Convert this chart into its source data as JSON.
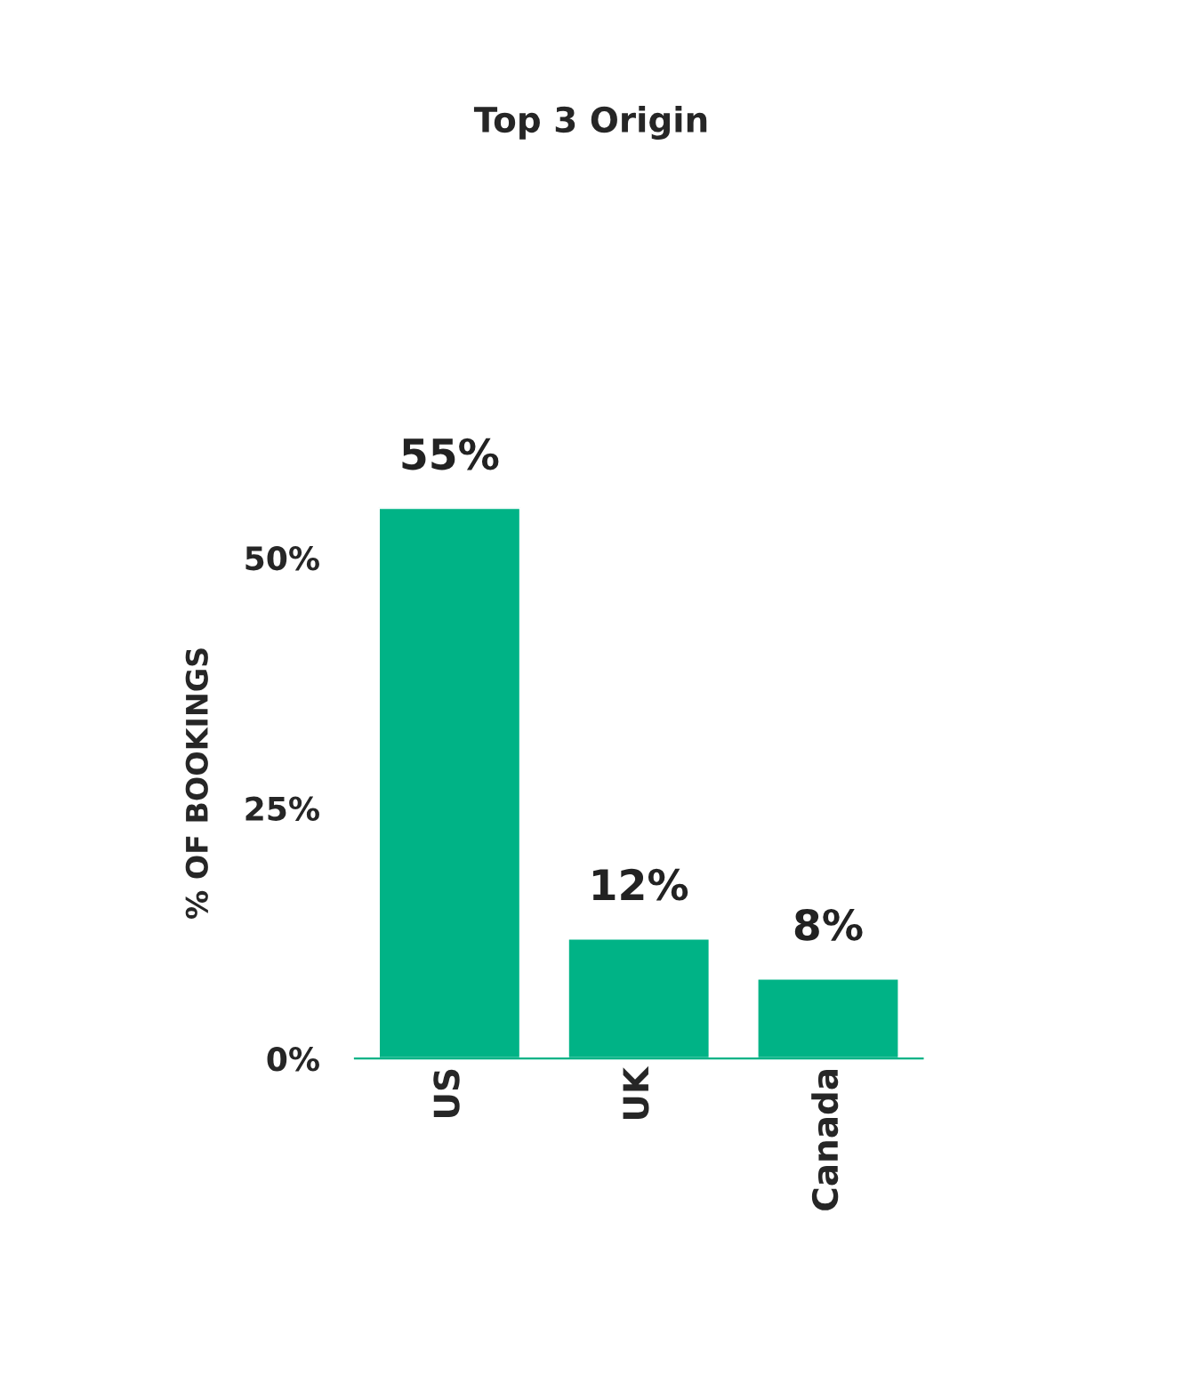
{
  "chart_data": {
    "type": "bar",
    "title": "Top 3 Origin",
    "ylabel": "% OF BOOKINGS",
    "categories": [
      "US",
      "UK",
      "Canada"
    ],
    "values": [
      55,
      12,
      8
    ],
    "color": "#00b386",
    "value_labels": [
      "55%",
      "12%",
      "8%"
    ],
    "ylim": [
      0,
      55
    ],
    "yticks": [
      {
        "value": 0,
        "label": "0%"
      },
      {
        "value": 25,
        "label": "25%"
      },
      {
        "value": 50,
        "label": "50%"
      }
    ],
    "grid": false,
    "legend": false
  }
}
